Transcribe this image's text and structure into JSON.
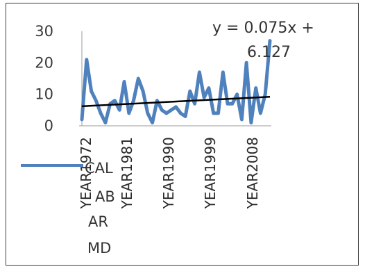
{
  "chart_data": {
    "type": "line",
    "title": "",
    "xlabel": "",
    "ylabel": "",
    "ylim": [
      0,
      30
    ],
    "yticks": [
      "0",
      "10",
      "20",
      "30"
    ],
    "x_tick_labels": [
      "YEAR1972",
      "YEAR1981",
      "YEAR1990",
      "YEAR1999",
      "YEAR2008"
    ],
    "x": [
      "YEAR1972",
      "YEAR1973",
      "YEAR1974",
      "YEAR1975",
      "YEAR1976",
      "YEAR1977",
      "YEAR1978",
      "YEAR1979",
      "YEAR1980",
      "YEAR1981",
      "YEAR1982",
      "YEAR1983",
      "YEAR1984",
      "YEAR1985",
      "YEAR1986",
      "YEAR1987",
      "YEAR1988",
      "YEAR1989",
      "YEAR1990",
      "YEAR1991",
      "YEAR1992",
      "YEAR1993",
      "YEAR1994",
      "YEAR1995",
      "YEAR1996",
      "YEAR1997",
      "YEAR1998",
      "YEAR1999",
      "YEAR2000",
      "YEAR2001",
      "YEAR2002",
      "YEAR2003",
      "YEAR2004",
      "YEAR2005",
      "YEAR2006",
      "YEAR2007",
      "YEAR2008",
      "YEAR2009",
      "YEAR2010",
      "YEAR2011",
      "YEAR2012"
    ],
    "series": [
      {
        "name": "CALABAR MD",
        "color": "#4f81bd",
        "values": [
          2,
          21,
          11,
          8,
          4,
          1,
          7,
          8,
          5,
          14,
          4,
          8,
          15,
          11,
          4,
          1,
          8,
          5,
          4,
          5,
          6,
          4,
          3,
          11,
          7,
          17,
          9,
          12,
          4,
          4,
          17,
          7,
          7,
          10,
          2,
          20,
          1,
          12,
          4,
          10,
          27
        ]
      }
    ],
    "legend": {
      "position": "left",
      "label_lines": [
        "CAL",
        "AB",
        "AR",
        "MD"
      ]
    },
    "trendline": {
      "type": "linear",
      "equation_lines": [
        "y = 0.075x +",
        "6.127"
      ],
      "slope": 0.075,
      "intercept": 6.127,
      "color": "#000000"
    },
    "grid": false
  }
}
